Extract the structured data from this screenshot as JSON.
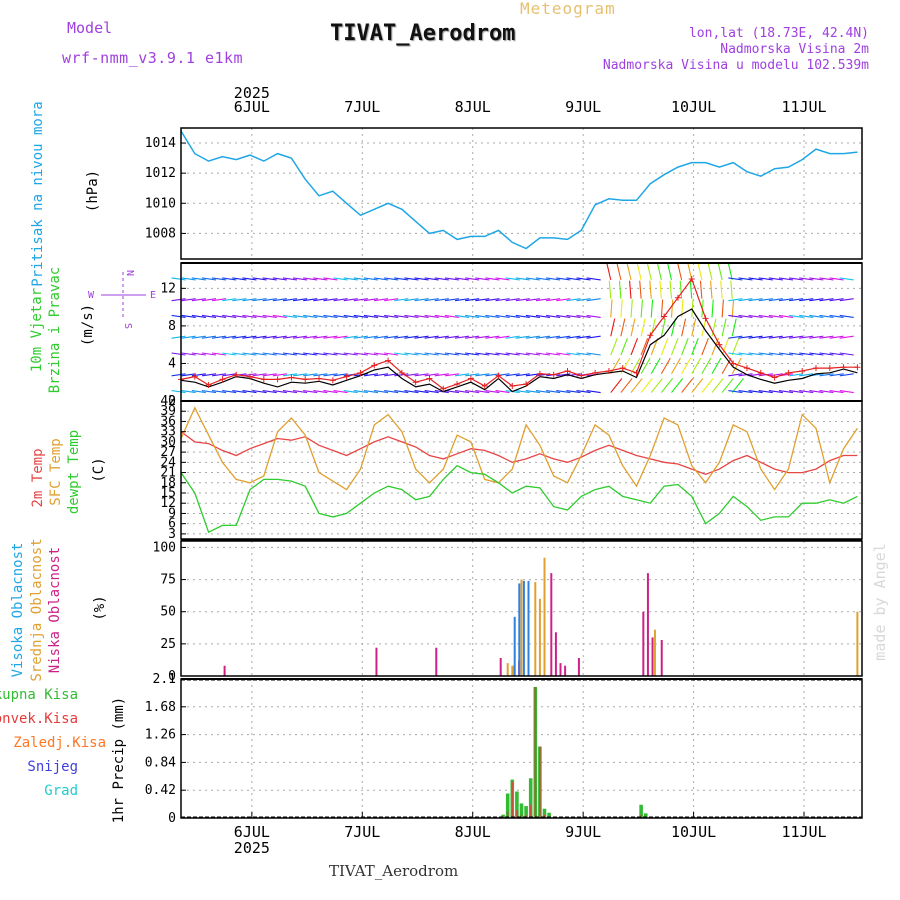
{
  "header": {
    "model_label": "Model",
    "model_name": "wrf-nmm_v3.9.1 e1km",
    "meteogram_label": "Meteogram",
    "station_title": "TIVAT_Aerodrom",
    "lonlat": "lon,lat (18.73E, 42.4N)",
    "elevation": "Nadmorska Visina 2m",
    "model_elevation": "Nadmorska Visina u modelu 102.539m",
    "footer_title": "TIVAT_Aerodrom",
    "watermark": "made by Angel",
    "year": "2025",
    "day_labels": [
      "6JUL",
      "7JUL",
      "8JUL",
      "9JUL",
      "10JUL",
      "11JUL"
    ]
  },
  "colors": {
    "pressure": "#1fa6e6",
    "wind_speed": "#000000",
    "gust": "#e52020",
    "temp2m": "#e84545",
    "sfc_temp": "#e0a030",
    "dewpoint": "#2ecc2e",
    "cloud_high": "#3080e0",
    "cloud_mid": "#e0a030",
    "cloud_low": "#cc2288",
    "precip_total": "#33bb33",
    "precip_conv": "#e53b3b",
    "precip_frozen": "#ff7722",
    "snow": "#4040dd",
    "graupel": "#22cccc",
    "purple_text": "#a040e0"
  },
  "chart_data": [
    {
      "type": "line",
      "name": "pressure",
      "title": "Pritisak na nivou mora",
      "ylabel": "(hPa)",
      "ylim": [
        1006.3,
        1015
      ],
      "yticks": [
        1008,
        1010,
        1012,
        1014
      ],
      "x_hours": [
        0,
        3,
        6,
        9,
        12,
        15,
        18,
        21,
        24,
        27,
        30,
        33,
        36,
        39,
        42,
        45,
        48,
        51,
        54,
        57,
        60,
        63,
        66,
        69,
        72,
        75,
        78,
        81,
        84,
        87,
        90,
        93,
        96,
        99,
        102,
        105,
        108,
        111,
        114,
        117,
        120,
        123,
        126,
        129,
        132,
        135,
        138,
        141,
        144,
        147
      ],
      "values": [
        1014.8,
        1013.3,
        1012.8,
        1013.1,
        1012.9,
        1013.2,
        1012.8,
        1013.3,
        1013.0,
        1011.6,
        1010.5,
        1010.8,
        1010.0,
        1009.2,
        1009.6,
        1010.0,
        1009.6,
        1008.8,
        1008.0,
        1008.2,
        1007.6,
        1007.8,
        1007.8,
        1008.2,
        1007.4,
        1007.0,
        1007.7,
        1007.7,
        1007.6,
        1008.2,
        1009.9,
        1010.3,
        1010.2,
        1010.2,
        1011.3,
        1011.9,
        1012.4,
        1012.7,
        1012.7,
        1012.4,
        1012.7,
        1012.1,
        1011.8,
        1012.3,
        1012.4,
        1012.9,
        1013.6,
        1013.3,
        1013.3,
        1013.4
      ]
    },
    {
      "type": "line",
      "name": "wind",
      "title": "10m Vjetar Brzina i Pravac",
      "ylabel": "(m/s)",
      "ylim": [
        0,
        14.7
      ],
      "yticks": [
        0,
        4,
        8,
        12
      ],
      "compass": "N S W E",
      "x_hours": [
        0,
        3,
        6,
        9,
        12,
        15,
        18,
        21,
        24,
        27,
        30,
        33,
        36,
        39,
        42,
        45,
        48,
        51,
        54,
        57,
        60,
        63,
        66,
        69,
        72,
        75,
        78,
        81,
        84,
        87,
        90,
        93,
        96,
        99,
        102,
        105,
        108,
        111,
        114,
        117,
        120,
        123,
        126,
        129,
        132,
        135,
        138,
        141,
        144,
        147
      ],
      "series": [
        {
          "name": "speed",
          "values": [
            2.2,
            2.0,
            1.5,
            2.0,
            2.6,
            2.4,
            1.9,
            1.5,
            2.0,
            1.9,
            2.1,
            1.7,
            2.2,
            2.7,
            3.3,
            3.6,
            2.4,
            1.5,
            1.8,
            1.0,
            1.5,
            2.0,
            1.2,
            2.4,
            1.0,
            1.6,
            2.6,
            2.4,
            2.8,
            2.4,
            2.8,
            3.0,
            3.2,
            2.5,
            6.0,
            7.0,
            9.0,
            9.8,
            7.5,
            5.5,
            3.6,
            2.8,
            2.3,
            1.9,
            2.2,
            2.4,
            2.9,
            3.0,
            3.4,
            3.0
          ]
        },
        {
          "name": "gust",
          "values": [
            2.3,
            2.6,
            1.7,
            2.3,
            2.8,
            2.6,
            2.3,
            2.3,
            2.5,
            2.3,
            2.4,
            2.2,
            2.6,
            3.0,
            3.8,
            4.3,
            3.0,
            2.0,
            2.4,
            1.3,
            1.8,
            2.4,
            1.6,
            2.7,
            1.6,
            1.8,
            2.9,
            2.8,
            3.2,
            2.7,
            3.0,
            3.2,
            3.5,
            3.0,
            7.0,
            9.0,
            11.0,
            13.0,
            8.8,
            6.0,
            4.0,
            3.5,
            3.0,
            2.5,
            3.0,
            3.2,
            3.5,
            3.5,
            3.6,
            3.6
          ]
        }
      ]
    },
    {
      "type": "line",
      "name": "temperature",
      "title": "2m Temp SFC Temp dewpt Temp",
      "ylabel": "(C)",
      "ylim": [
        1.5,
        42
      ],
      "yticks": [
        3,
        6,
        9,
        12,
        15,
        18,
        21,
        24,
        27,
        30,
        33,
        36,
        39,
        42
      ],
      "x_hours": [
        0,
        3,
        6,
        9,
        12,
        15,
        18,
        21,
        24,
        27,
        30,
        33,
        36,
        39,
        42,
        45,
        48,
        51,
        54,
        57,
        60,
        63,
        66,
        69,
        72,
        75,
        78,
        81,
        84,
        87,
        90,
        93,
        96,
        99,
        102,
        105,
        108,
        111,
        114,
        117,
        120,
        123,
        126,
        129,
        132,
        135,
        138,
        141,
        144,
        147
      ],
      "series": [
        {
          "name": "2m Temp",
          "values": [
            33,
            30,
            29.5,
            27.5,
            26,
            28,
            29.5,
            31,
            30.5,
            31.5,
            29,
            27.5,
            26,
            28,
            30,
            31.5,
            30,
            28.5,
            26,
            25,
            26.5,
            28,
            27.5,
            26,
            24,
            25,
            26.5,
            25,
            24,
            25.5,
            27.5,
            29,
            27.5,
            26,
            25,
            24,
            23.5,
            22,
            20.5,
            22,
            24.5,
            26,
            24,
            22,
            21,
            21,
            22,
            24.5,
            26,
            26
          ]
        },
        {
          "name": "SFC Temp",
          "values": [
            31,
            40,
            32,
            24,
            19,
            18,
            20,
            33,
            37,
            32,
            21,
            18.5,
            16,
            22,
            35,
            38,
            33,
            22,
            18,
            22,
            32,
            30,
            19,
            18,
            22,
            35,
            29,
            20,
            18,
            26,
            35,
            32,
            23,
            17,
            26,
            37,
            35,
            23,
            18,
            24,
            35,
            33,
            22,
            16,
            22,
            38,
            34,
            18,
            28,
            34
          ]
        },
        {
          "name": "dewpt Temp",
          "values": [
            21,
            15,
            3.5,
            5.5,
            5.5,
            16,
            19,
            19,
            18.5,
            17,
            9,
            8,
            9,
            12,
            15,
            17,
            16,
            13,
            14,
            19,
            23,
            21,
            20.5,
            18,
            15,
            17,
            16.5,
            11,
            10,
            14,
            16,
            17,
            14,
            13,
            12,
            17,
            17.5,
            14,
            6,
            9,
            14,
            11,
            7,
            8,
            8,
            12,
            12,
            13,
            12,
            14
          ]
        }
      ]
    },
    {
      "type": "bar",
      "name": "cloudiness",
      "title": "Visoka Oblacnost Srednja Oblacnost Niska Oblacnost",
      "ylabel": "(%)",
      "ylim": [
        0,
        105
      ],
      "yticks": [
        0,
        25,
        50,
        75,
        100
      ],
      "x_hours": [
        9,
        42,
        55,
        69,
        71,
        72,
        73,
        74,
        75,
        76,
        77,
        78,
        79,
        80,
        81,
        82,
        83,
        86,
        100,
        101,
        102,
        103,
        104,
        147
      ],
      "series": [
        {
          "name": "Visoka Oblacnost",
          "values": [
            0,
            0,
            0,
            0,
            0,
            0,
            46,
            72,
            74,
            74,
            0,
            0,
            0,
            0,
            0,
            0,
            0,
            0,
            0,
            0,
            0,
            0,
            0,
            0
          ]
        },
        {
          "name": "Srednja Oblacnost",
          "values": [
            0,
            0,
            0,
            0,
            10,
            8,
            0,
            75,
            0,
            0,
            73,
            60,
            92,
            0,
            0,
            0,
            0,
            0,
            0,
            0,
            0,
            36,
            0,
            50
          ]
        },
        {
          "name": "Niska Oblacnost",
          "values": [
            8,
            22,
            22,
            14,
            0,
            8,
            12,
            0,
            0,
            0,
            0,
            0,
            0,
            80,
            34,
            10,
            8,
            14,
            50,
            80,
            30,
            0,
            28,
            0
          ]
        }
      ]
    },
    {
      "type": "bar",
      "name": "precipitation",
      "title": "Ukupna Kisa Konvek.Kisa Zaledj.Kisa Snijeg Grad",
      "ylabel": "1hr Precip (mm)",
      "ylim": [
        0,
        2.1
      ],
      "yticks": [
        0,
        0.42,
        0.84,
        1.26,
        1.68,
        2.1
      ],
      "x_hours": [
        70,
        71,
        72,
        73,
        74,
        75,
        76,
        77,
        78,
        79,
        80,
        81,
        100,
        101
      ],
      "series": [
        {
          "name": "Ukupna Kisa",
          "values": [
            0.05,
            0.37,
            0.58,
            0.4,
            0.22,
            0.18,
            0.6,
            1.98,
            1.08,
            0.14,
            0.08,
            0.01,
            0.2,
            0.07
          ]
        },
        {
          "name": "Konvek.Kisa",
          "values": [
            0.03,
            0.1,
            0.55,
            0.12,
            0.05,
            0.04,
            0.2,
            1.98,
            1.08,
            0.05,
            0.02,
            0,
            0.05,
            0.02
          ]
        }
      ],
      "legend": [
        "Ukupna Kisa",
        "Konvek.Kisa",
        "Zaledj.Kisa",
        "Snijeg",
        "Grad"
      ]
    }
  ]
}
